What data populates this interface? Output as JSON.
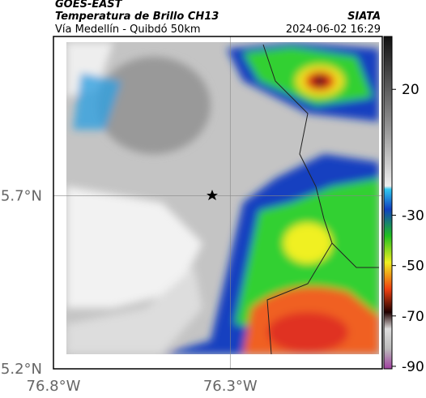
{
  "header": {
    "source": "GOES-EAST",
    "title": "Temperatura de Brillo CH13",
    "subtitle": "Vía Medellín - Quibdó 50km",
    "agency": "SIATA",
    "timestamp": "2024-06-02 16:29"
  },
  "map": {
    "xlim": [
      -76.8,
      -75.87
    ],
    "ylim": [
      5.2,
      6.16
    ],
    "xticks": [
      {
        "value": -76.8,
        "label": "76.8°W"
      },
      {
        "value": -76.3,
        "label": "76.3°W"
      }
    ],
    "yticks": [
      {
        "value": 5.7,
        "label": "5.7°N"
      },
      {
        "value": 5.2,
        "label": "5.2°N"
      }
    ],
    "grid": true
  },
  "colorbar": {
    "lim": [
      -91,
      41
    ],
    "ticks": [
      20,
      -30,
      -50,
      -70,
      -90
    ]
  }
}
